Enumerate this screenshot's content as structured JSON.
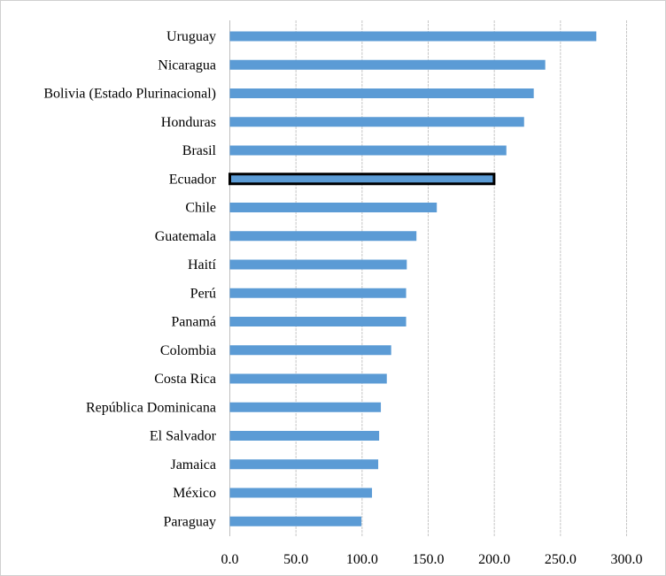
{
  "chart_data": {
    "type": "bar",
    "orientation": "horizontal",
    "title": "",
    "xlabel": "",
    "ylabel": "",
    "categories": [
      "Uruguay",
      "Nicaragua",
      "Bolivia (Estado Plurinacional)",
      "Honduras",
      "Brasil",
      "Ecuador",
      "Chile",
      "Guatemala",
      "Haití",
      "Perú",
      "Panamá",
      "Colombia",
      "Costa Rica",
      "República Dominicana",
      "El Salvador",
      "Jamaica",
      "México",
      "Paraguay"
    ],
    "values": [
      277.1,
      238.5,
      229.8,
      222.5,
      209.1,
      199.8,
      156.5,
      141.1,
      133.8,
      133.3,
      133.3,
      122.0,
      118.7,
      114.2,
      112.9,
      112.2,
      107.5,
      99.5
    ],
    "highlighted": "Ecuador",
    "xlim": [
      0,
      300
    ],
    "xticks": [
      "0.0",
      "50.0",
      "100.0",
      "150.0",
      "200.0",
      "250.0",
      "300.0"
    ],
    "grid": "vertical dashed",
    "legend": "none",
    "colors": {
      "bar": "#5b9bd5",
      "highlight_border": "#000000",
      "grid": "#c8c8c8"
    }
  }
}
